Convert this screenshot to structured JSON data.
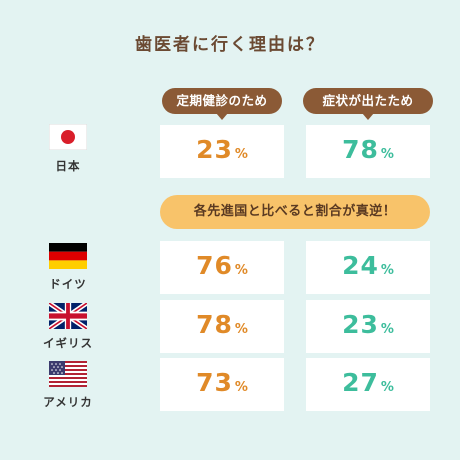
{
  "title": "歯医者に行く理由は？",
  "pct_symbol": "%",
  "highlight": "各先進国と比べると割合が真逆！",
  "colors": {
    "background": "#e3f3f2",
    "pill": "#8b5a36",
    "checkup_value": "#e08a28",
    "symptom_value": "#3dbd9c",
    "banner": "#f8c36a"
  },
  "chart_data": {
    "type": "table",
    "title": "歯医者に行く理由は？",
    "columns": [
      "定期健診のため",
      "症状が出たため"
    ],
    "unit": "%",
    "rows": [
      {
        "country": "日本",
        "flag": "japan-flag-icon",
        "values": [
          23,
          78
        ]
      },
      {
        "country": "ドイツ",
        "flag": "germany-flag-icon",
        "values": [
          76,
          24
        ]
      },
      {
        "country": "イギリス",
        "flag": "uk-flag-icon",
        "values": [
          78,
          23
        ]
      },
      {
        "country": "アメリカ",
        "flag": "usa-flag-icon",
        "values": [
          73,
          27
        ]
      }
    ]
  }
}
